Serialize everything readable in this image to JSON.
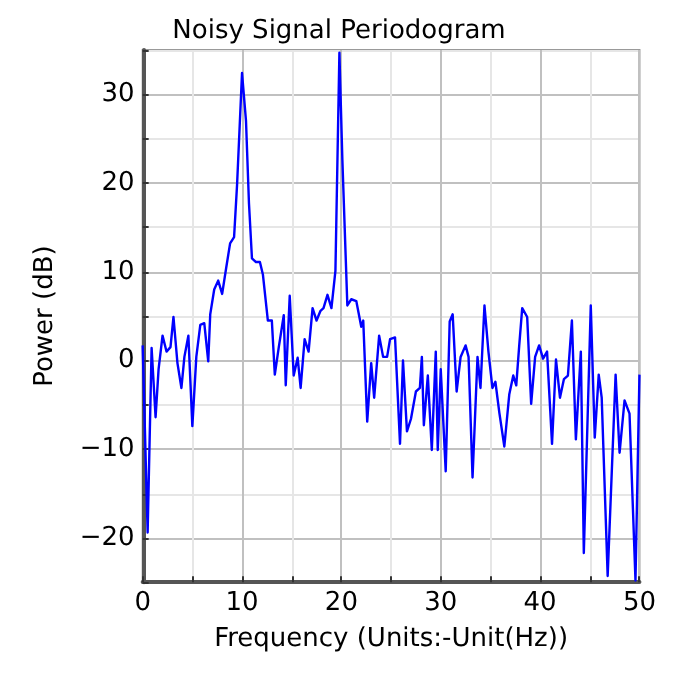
{
  "chart_data": {
    "type": "line",
    "title": "Noisy Signal Periodogram",
    "xlabel": "Frequency (Units:-Unit(Hz))",
    "ylabel": "Power (dB)",
    "xlim": [
      0,
      50
    ],
    "ylim": [
      -25,
      35
    ],
    "xticks": [
      0,
      {
        "value": 5,
        "label": null
      },
      10,
      {
        "value": 15,
        "label": null
      },
      20,
      {
        "value": 25,
        "label": null
      },
      30,
      {
        "value": 35,
        "label": null
      },
      40,
      {
        "value": 45,
        "label": null
      },
      50
    ],
    "yticks": [
      {
        "value": -25,
        "label": null
      },
      {
        "value": -20,
        "label": "−20"
      },
      {
        "value": -15,
        "label": null
      },
      {
        "value": -10,
        "label": "−10"
      },
      {
        "value": -5,
        "label": null
      },
      0,
      {
        "value": 5,
        "label": null
      },
      10,
      {
        "value": 15,
        "label": null
      },
      20,
      {
        "value": 25,
        "label": null
      },
      30,
      {
        "value": 35,
        "label": null
      }
    ],
    "grid": true,
    "marker": "none",
    "line_style": "solid",
    "series": [
      {
        "color": "#0000ff",
        "x": [
          0,
          0.5,
          0.9,
          1.3,
          1.6,
          2.0,
          2.4,
          2.8,
          3.1,
          3.5,
          3.9,
          4.2,
          4.6,
          5.0,
          5.4,
          5.8,
          6.2,
          6.6,
          6.8,
          7.2,
          7.6,
          8.0,
          8.4,
          8.8,
          9.2,
          9.5,
          10.0,
          10.4,
          10.7,
          11.0,
          11.4,
          11.8,
          12.1,
          12.6,
          13.0,
          13.3,
          13.7,
          14.2,
          14.4,
          14.8,
          15.2,
          15.6,
          15.9,
          16.3,
          16.7,
          17.1,
          17.5,
          17.9,
          18.2,
          18.6,
          19.0,
          19.4,
          19.8,
          20.1,
          20.6,
          21.0,
          21.5,
          22.0,
          22.2,
          22.6,
          23.0,
          23.3,
          23.8,
          24.2,
          24.6,
          24.9,
          25.4,
          25.9,
          26.2,
          26.6,
          27.0,
          27.5,
          27.9,
          28.1,
          28.3,
          28.7,
          29.1,
          29.5,
          29.7,
          30.0,
          30.5,
          30.9,
          31.2,
          31.6,
          32.0,
          32.5,
          32.8,
          33.2,
          33.7,
          34.0,
          34.4,
          34.8,
          35.2,
          35.5,
          35.9,
          36.4,
          36.9,
          37.3,
          37.6,
          37.9,
          38.2,
          38.7,
          39.1,
          39.5,
          39.9,
          40.3,
          40.7,
          41.2,
          41.6,
          42.0,
          42.4,
          42.8,
          43.2,
          43.6,
          44.1,
          44.4,
          45.1,
          45.5,
          45.9,
          46.2,
          46.8,
          47.6,
          48.0,
          48.5,
          49.0,
          49.6,
          50
        ],
        "values": [
          1.7,
          -19.4,
          1.4,
          -6.4,
          -1,
          2.8,
          1,
          1.5,
          4.9,
          -0.3,
          -3.1,
          0.4,
          2.8,
          -7.4,
          0.4,
          4,
          4.2,
          -0.1,
          5.2,
          8,
          9,
          7.5,
          10.4,
          13.2,
          13.9,
          19.8,
          32.4,
          27,
          17.7,
          11.5,
          11.1,
          11.1,
          9.7,
          4.5,
          4.5,
          -1.6,
          1.5,
          5.1,
          -2.8,
          7.3,
          -1.7,
          0.3,
          -3.1,
          2.4,
          1,
          5.9,
          4.5,
          5.6,
          5.9,
          7.4,
          5.9,
          10.1,
          34.7,
          22.6,
          6.2,
          6.9,
          6.7,
          3.8,
          4.5,
          -6.9,
          -0.3,
          -4.2,
          2.8,
          0.4,
          0.4,
          2.4,
          2.6,
          -9.4,
          0,
          -8,
          -6.6,
          -3.5,
          -3.1,
          0.4,
          -7.3,
          -1.7,
          -10.1,
          1,
          -10.1,
          -1,
          -12.5,
          4.4,
          5.2,
          -3.5,
          0.4,
          1.7,
          0.4,
          -13.2,
          0.4,
          -3.1,
          6.2,
          1,
          -3.1,
          -2.4,
          -5.9,
          -9.7,
          -3.8,
          -1.7,
          -2.8,
          1.7,
          5.9,
          4.9,
          -4.9,
          0.4,
          1.7,
          0.2,
          1,
          -9.4,
          0.1,
          -4.2,
          -2.1,
          -1.7,
          4.5,
          -8.9,
          1,
          -21.7,
          6.2,
          -8.7,
          -1.6,
          -4.2,
          -24.3,
          -1.6,
          -10.4,
          -4.5,
          -6,
          -24.8,
          -1.6
        ]
      }
    ]
  }
}
